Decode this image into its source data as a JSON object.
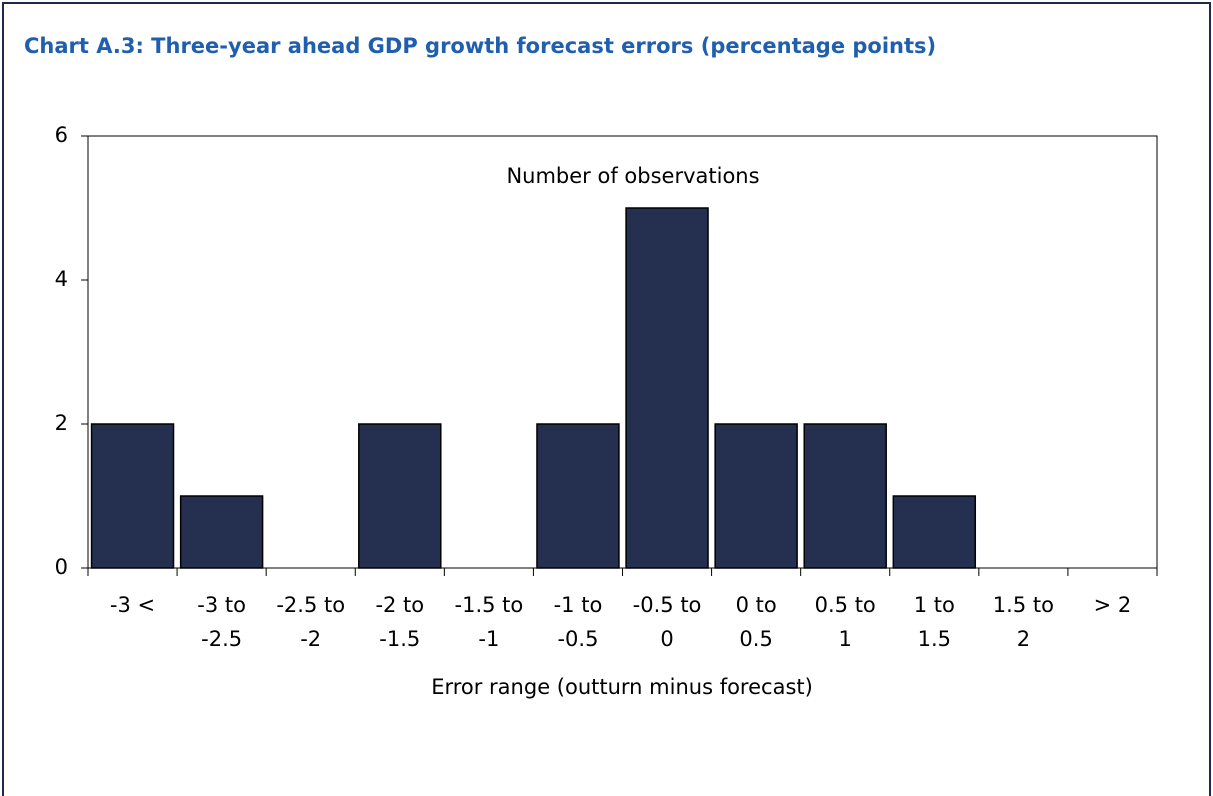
{
  "chart_data": {
    "type": "bar",
    "title": "Chart A.3: Three-year ahead GDP growth forecast errors (percentage points)",
    "annotation": "Number of observations",
    "x_label": "Error range (outturn minus forecast)",
    "categories": [
      [
        "-3 <"
      ],
      [
        "-3 to",
        "-2.5"
      ],
      [
        "-2.5 to",
        "-2"
      ],
      [
        "-2 to",
        "-1.5"
      ],
      [
        "-1.5 to",
        "-1"
      ],
      [
        "-1 to",
        "-0.5"
      ],
      [
        "-0.5 to",
        "0"
      ],
      [
        "0 to",
        "0.5"
      ],
      [
        "0.5 to",
        "1"
      ],
      [
        "1 to",
        "1.5"
      ],
      [
        "1.5 to",
        "2"
      ],
      [
        "> 2"
      ]
    ],
    "values": [
      2,
      1,
      0,
      2,
      0,
      2,
      5,
      2,
      2,
      1,
      0,
      0
    ],
    "color": "#253050",
    "ylim": [
      0,
      6
    ],
    "yticks": [
      0,
      2,
      4,
      6
    ]
  }
}
